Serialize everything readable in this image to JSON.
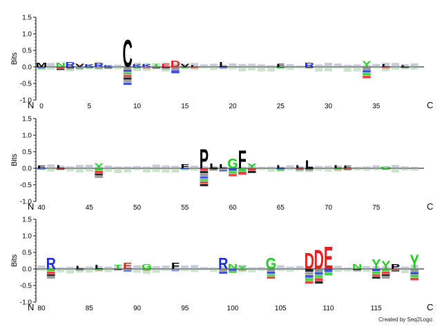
{
  "credit": "Created by Seq2Logo",
  "chart_data": {
    "type": "sequence-logo",
    "ylabel": "Bits",
    "ylim": [
      -1.0,
      1.5
    ],
    "yticks": [
      "1.5",
      "1.0",
      "0.5",
      "0.0",
      "-0.5",
      "-1.0"
    ],
    "n_terminus_label": "N",
    "c_terminus_label": "C",
    "colors": {
      "basic": "#1f2fd6",
      "acidic": "#e02020",
      "aromatic_polar": "#22cc22",
      "hydrophobic": "#000000",
      "other": "#000000"
    },
    "rows": [
      {
        "start": 0,
        "end": 39,
        "xticks": [
          0,
          5,
          10,
          15,
          20,
          25,
          30,
          35
        ],
        "columns": [
          {
            "pos": 0,
            "up": [
              [
                "M",
                0.12
              ]
            ],
            "down": 0.08
          },
          {
            "pos": 2,
            "up": [
              [
                "N",
                0.12
              ]
            ],
            "down": 0.1
          },
          {
            "pos": 3,
            "up": [
              [
                "R",
                0.15
              ]
            ],
            "down": 0.08
          },
          {
            "pos": 4,
            "up": [
              [
                "V",
                0.1
              ]
            ],
            "down": 0.06
          },
          {
            "pos": 5,
            "up": [
              [
                "K",
                0.08
              ]
            ],
            "down": 0.05
          },
          {
            "pos": 6,
            "up": [
              [
                "R",
                0.12
              ]
            ],
            "down": 0.06
          },
          {
            "pos": 7,
            "up": [
              [
                "K",
                0.06
              ]
            ],
            "down": 0.05
          },
          {
            "pos": 9,
            "up": [
              [
                "C",
                0.85
              ]
            ],
            "down": 0.55
          },
          {
            "pos": 10,
            "up": [
              [
                "K",
                0.08
              ]
            ],
            "down": 0.05
          },
          {
            "pos": 11,
            "up": [
              [
                "K",
                0.08
              ]
            ],
            "down": 0.05
          },
          {
            "pos": 12,
            "up": [
              [
                "T",
                0.1
              ]
            ],
            "down": 0.05
          },
          {
            "pos": 13,
            "up": [
              [
                "E",
                0.1
              ]
            ],
            "down": 0.08
          },
          {
            "pos": 14,
            "up": [
              [
                "D",
                0.2
              ]
            ],
            "down": 0.2
          },
          {
            "pos": 15,
            "up": [
              [
                "V",
                0.1
              ]
            ],
            "down": 0.05
          },
          {
            "pos": 16,
            "up": [
              [
                "L",
                0.06
              ]
            ],
            "down": 0.04
          },
          {
            "pos": 19,
            "up": [
              [
                "L",
                0.15
              ]
            ],
            "down": 0.04
          },
          {
            "pos": 25,
            "up": [
              [
                "F",
                0.1
              ]
            ],
            "down": 0.04
          },
          {
            "pos": 28,
            "up": [
              [
                "R",
                0.12
              ]
            ],
            "down": 0.05
          },
          {
            "pos": 34,
            "up": [
              [
                "Y",
                0.18
              ]
            ],
            "down": 0.35
          },
          {
            "pos": 36,
            "up": [
              [
                "L",
                0.08
              ]
            ],
            "down": 0.04
          },
          {
            "pos": 38,
            "up": [
              [
                "L",
                0.06
              ]
            ],
            "down": 0.04
          }
        ]
      },
      {
        "start": 40,
        "end": 79,
        "xticks": [
          40,
          45,
          50,
          55,
          60,
          65,
          70,
          75
        ],
        "columns": [
          {
            "pos": 40,
            "up": [
              [
                "F",
                0.08
              ]
            ],
            "down": 0.04
          },
          {
            "pos": 42,
            "up": [
              [
                "L",
                0.1
              ]
            ],
            "down": 0.04
          },
          {
            "pos": 46,
            "up": [
              [
                "Y",
                0.15
              ]
            ],
            "down": 0.3
          },
          {
            "pos": 55,
            "up": [
              [
                "F",
                0.12
              ]
            ],
            "down": 0.05
          },
          {
            "pos": 57,
            "up": [
              [
                "P",
                0.6
              ]
            ],
            "down": 0.55
          },
          {
            "pos": 58,
            "up": [
              [
                "L",
                0.15
              ]
            ],
            "down": 0.08
          },
          {
            "pos": 59,
            "up": [
              [
                "L",
                0.12
              ]
            ],
            "down": 0.1
          },
          {
            "pos": 60,
            "up": [
              [
                "G",
                0.3
              ]
            ],
            "down": 0.25
          },
          {
            "pos": 61,
            "up": [
              [
                "F",
                0.55
              ]
            ],
            "down": 0.2
          },
          {
            "pos": 62,
            "up": [
              [
                "Y",
                0.15
              ]
            ],
            "down": 0.15
          },
          {
            "pos": 65,
            "up": [
              [
                "L",
                0.1
              ]
            ],
            "down": 0.08
          },
          {
            "pos": 67,
            "up": [
              [
                "L",
                0.1
              ]
            ],
            "down": 0.06
          },
          {
            "pos": 68,
            "up": [
              [
                "L",
                0.25
              ]
            ],
            "down": 0.08
          },
          {
            "pos": 71,
            "up": [
              [
                "L",
                0.1
              ]
            ],
            "down": 0.05
          },
          {
            "pos": 72,
            "up": [
              [
                "F",
                0.08
              ]
            ],
            "down": 0.05
          },
          {
            "pos": 76,
            "up": [
              [
                "G",
                0.06
              ]
            ],
            "down": 0.04
          }
        ]
      },
      {
        "start": 80,
        "end": 119,
        "xticks": [
          80,
          85,
          90,
          95,
          100,
          105,
          110,
          115
        ],
        "columns": [
          {
            "pos": 81,
            "up": [
              [
                "R",
                0.35
              ]
            ],
            "down": 0.3
          },
          {
            "pos": 84,
            "up": [
              [
                "L",
                0.1
              ]
            ],
            "down": 0.04
          },
          {
            "pos": 86,
            "up": [
              [
                "L",
                0.12
              ]
            ],
            "down": 0.05
          },
          {
            "pos": 88,
            "up": [
              [
                "T",
                0.12
              ]
            ],
            "down": 0.05
          },
          {
            "pos": 89,
            "up": [
              [
                "E",
                0.2
              ]
            ],
            "down": 0.08
          },
          {
            "pos": 91,
            "up": [
              [
                "G",
                0.15
              ]
            ],
            "down": 0.05
          },
          {
            "pos": 94,
            "up": [
              [
                "F",
                0.2
              ]
            ],
            "down": 0.06
          },
          {
            "pos": 99,
            "up": [
              [
                "R",
                0.35
              ]
            ],
            "down": 0.15
          },
          {
            "pos": 100,
            "up": [
              [
                "N",
                0.15
              ]
            ],
            "down": 0.12
          },
          {
            "pos": 101,
            "up": [
              [
                "Y",
                0.1
              ]
            ],
            "down": 0.05
          },
          {
            "pos": 104,
            "up": [
              [
                "G",
                0.35
              ]
            ],
            "down": 0.3
          },
          {
            "pos": 108,
            "up": [
              [
                "D",
                0.5
              ]
            ],
            "down": 0.45
          },
          {
            "pos": 109,
            "up": [
              [
                "D",
                0.6
              ]
            ],
            "down": 0.45
          },
          {
            "pos": 110,
            "up": [
              [
                "E",
                0.7
              ]
            ],
            "down": 0.2
          },
          {
            "pos": 113,
            "up": [
              [
                "N",
                0.15
              ]
            ],
            "down": 0.08
          },
          {
            "pos": 115,
            "up": [
              [
                "Y",
                0.3
              ]
            ],
            "down": 0.3
          },
          {
            "pos": 116,
            "up": [
              [
                "Y",
                0.25
              ]
            ],
            "down": 0.3
          },
          {
            "pos": 117,
            "up": [
              [
                "P",
                0.15
              ]
            ],
            "down": 0.08
          },
          {
            "pos": 119,
            "up": [
              [
                "Y",
                0.45
              ]
            ],
            "down": 0.35
          }
        ]
      }
    ]
  }
}
